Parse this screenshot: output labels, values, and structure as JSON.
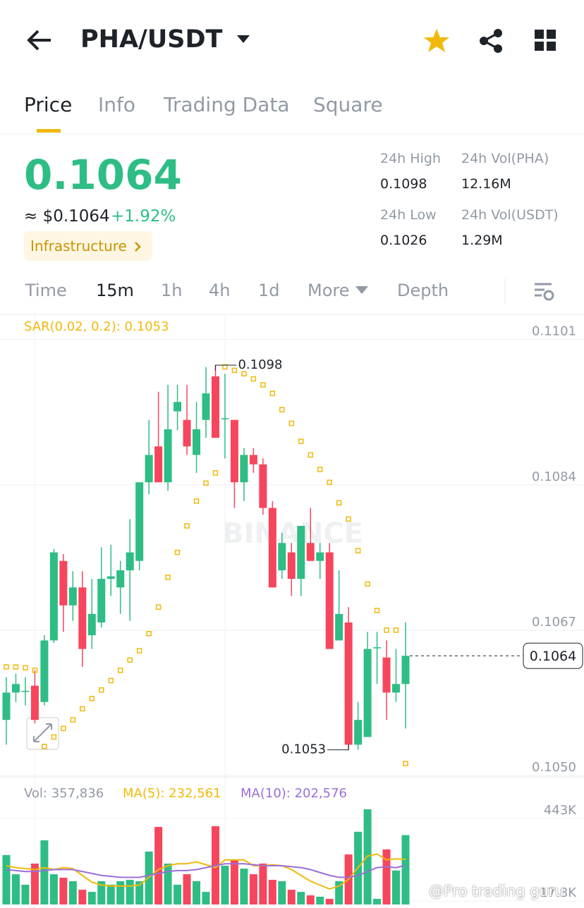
{
  "header": {
    "title": "PHA/USDT"
  },
  "tabs": [
    "Price",
    "Info",
    "Trading Data",
    "Square"
  ],
  "price": {
    "last": "0.1064",
    "fiat": "≈ $0.1064",
    "change": "+1.92%",
    "tag": "Infrastructure"
  },
  "stats": [
    {
      "label": "24h High",
      "value": "0.1098"
    },
    {
      "label": "24h Vol(PHA)",
      "value": "12.16M"
    },
    {
      "label": "24h Low",
      "value": "0.1026"
    },
    {
      "label": "24h Vol(USDT)",
      "value": "1.29M"
    }
  ],
  "intervals": [
    "Time",
    "15m",
    "1h",
    "4h",
    "1d",
    "More",
    "Depth"
  ],
  "chart_data": {
    "type": "candlestick",
    "indicator": "SAR(0.02, 0.2): 0.1053",
    "watermark": "BINANCE",
    "up_color": "#2ebd85",
    "down_color": "#f6465d",
    "sar_color": "#f0b90b",
    "ylim": [
      0.105,
      0.11032
    ],
    "yticks": [
      0.1101,
      0.1084,
      0.1067,
      {
        "value": 0.105,
        "label": "0.1050"
      }
    ],
    "last_price": 0.1064,
    "high_annotation": 0.1098,
    "low_annotation": 0.1053,
    "open": [
      0.10565,
      0.10597,
      0.10598,
      0.10605,
      0.10586,
      0.10658,
      0.10751,
      0.10699,
      0.1072,
      0.10664,
      0.10679,
      0.1073,
      0.1072,
      0.1074,
      0.10751,
      0.10843,
      0.10885,
      0.10843,
      0.10926,
      0.10916,
      0.10875,
      0.10916,
      0.10967,
      0.10918,
      0.10916,
      0.10843,
      0.10875,
      0.10864,
      0.10813,
      0.1074,
      0.10761,
      0.1073,
      0.10772,
      0.10751,
      0.10761,
      0.10658,
      0.10679,
      0.10536,
      0.10545,
      0.1065,
      0.10638,
      0.10597,
      0.10607
    ],
    "high": [
      0.10615,
      0.10619,
      0.10615,
      0.10623,
      0.10664,
      0.10765,
      0.10759,
      0.10739,
      0.10739,
      0.1073,
      0.10767,
      0.1077,
      0.10751,
      0.108,
      0.10843,
      0.10916,
      0.10949,
      0.10957,
      0.10957,
      0.10957,
      0.10937,
      0.10978,
      0.1098,
      0.1097,
      0.10916,
      0.10883,
      0.10883,
      0.10871,
      0.10821,
      0.10784,
      0.10772,
      0.10792,
      0.10813,
      0.10772,
      0.10772,
      0.1074,
      0.10697,
      0.10586,
      0.10668,
      0.10668,
      0.10658,
      0.10648,
      0.10679
    ],
    "low": [
      0.10536,
      0.10586,
      0.10582,
      0.10561,
      0.10582,
      0.10655,
      0.10668,
      0.10681,
      0.10627,
      0.10648,
      0.10673,
      0.1071,
      0.10689,
      0.10681,
      0.1074,
      0.10829,
      0.10843,
      0.10833,
      0.10904,
      0.10875,
      0.10854,
      0.10895,
      0.10895,
      0.10871,
      0.10813,
      0.10821,
      0.10854,
      0.10805,
      0.1072,
      0.1073,
      0.1071,
      0.1071,
      0.10751,
      0.1073,
      0.10648,
      0.10658,
      0.1053,
      0.1053,
      0.10545,
      0.10607,
      0.10565,
      0.10586,
      0.10555
    ],
    "close": [
      0.10597,
      0.10607,
      0.10599,
      0.10565,
      0.10658,
      0.10761,
      0.10699,
      0.1072,
      0.10648,
      0.10689,
      0.1073,
      0.10733,
      0.1074,
      0.10761,
      0.10843,
      0.10875,
      0.10843,
      0.10905,
      0.10937,
      0.10885,
      0.10905,
      0.10947,
      0.10895,
      0.10918,
      0.10843,
      0.10875,
      0.10864,
      0.10813,
      0.1072,
      0.10772,
      0.1073,
      0.10792,
      0.10751,
      0.10761,
      0.10648,
      0.10689,
      0.10536,
      0.10565,
      0.10648,
      0.1065,
      0.10597,
      0.10607,
      0.1064
    ],
    "sar": [
      0.10627,
      0.10627,
      0.10626,
      0.10623,
      0.10534,
      0.10545,
      0.10555,
      0.10565,
      0.10578,
      0.1059,
      0.106,
      0.10611,
      0.10623,
      0.10635,
      0.10646,
      0.10666,
      0.10697,
      0.10732,
      0.10761,
      0.10792,
      0.10821,
      0.10842,
      0.10854,
      0.10978,
      0.10974,
      0.1097,
      0.10964,
      0.10957,
      0.10947,
      0.10928,
      0.10912,
      0.10891,
      0.10875,
      0.10858,
      0.10843,
      0.10819,
      0.108,
      0.10763,
      0.10724,
      0.10693,
      0.1067,
      0.1067,
      0.10514
    ],
    "volume_label": "Vol: 357,836",
    "ma5_label": "MA(5): 232,561",
    "ma10_label": "MA(10): 202,576",
    "ma5_color": "#f0b90b",
    "ma10_color": "#9b6fd6",
    "vlim": [
      0,
      520000
    ],
    "vticks": [
      {
        "value": 443000,
        "label": "443K"
      },
      {
        "value": 17800,
        "label": "17.8K"
      }
    ],
    "volume": [
      255000,
      156000,
      102000,
      211000,
      331000,
      156000,
      138000,
      120000,
      76000,
      65000,
      120000,
      102000,
      120000,
      127000,
      120000,
      273000,
      400000,
      211000,
      102000,
      156000,
      120000,
      65000,
      404000,
      200000,
      229000,
      185000,
      156000,
      211000,
      127000,
      120000,
      76000,
      65000,
      47000,
      40000,
      29000,
      120000,
      258000,
      375000,
      491000,
      29000,
      284000,
      175000,
      357836
    ],
    "ma5": [
      200000,
      190000,
      185000,
      180000,
      190000,
      180000,
      190000,
      185000,
      150000,
      115000,
      100000,
      95000,
      95000,
      95000,
      100000,
      140000,
      180000,
      200000,
      210000,
      210000,
      220000,
      205000,
      190000,
      230000,
      230000,
      230000,
      200000,
      200000,
      205000,
      200000,
      180000,
      150000,
      120000,
      100000,
      80000,
      95000,
      130000,
      190000,
      250000,
      260000,
      230000,
      235000,
      232561
    ],
    "ma10": [
      180000,
      175000,
      170000,
      170000,
      175000,
      180000,
      180000,
      180000,
      170000,
      160000,
      150000,
      145000,
      140000,
      140000,
      140000,
      150000,
      160000,
      170000,
      175000,
      175000,
      180000,
      190000,
      200000,
      210000,
      210000,
      210000,
      205000,
      200000,
      200000,
      200000,
      195000,
      190000,
      180000,
      165000,
      150000,
      140000,
      140000,
      150000,
      170000,
      190000,
      195000,
      190000,
      202576
    ]
  },
  "footer_watermark": "@Pro trading guru"
}
